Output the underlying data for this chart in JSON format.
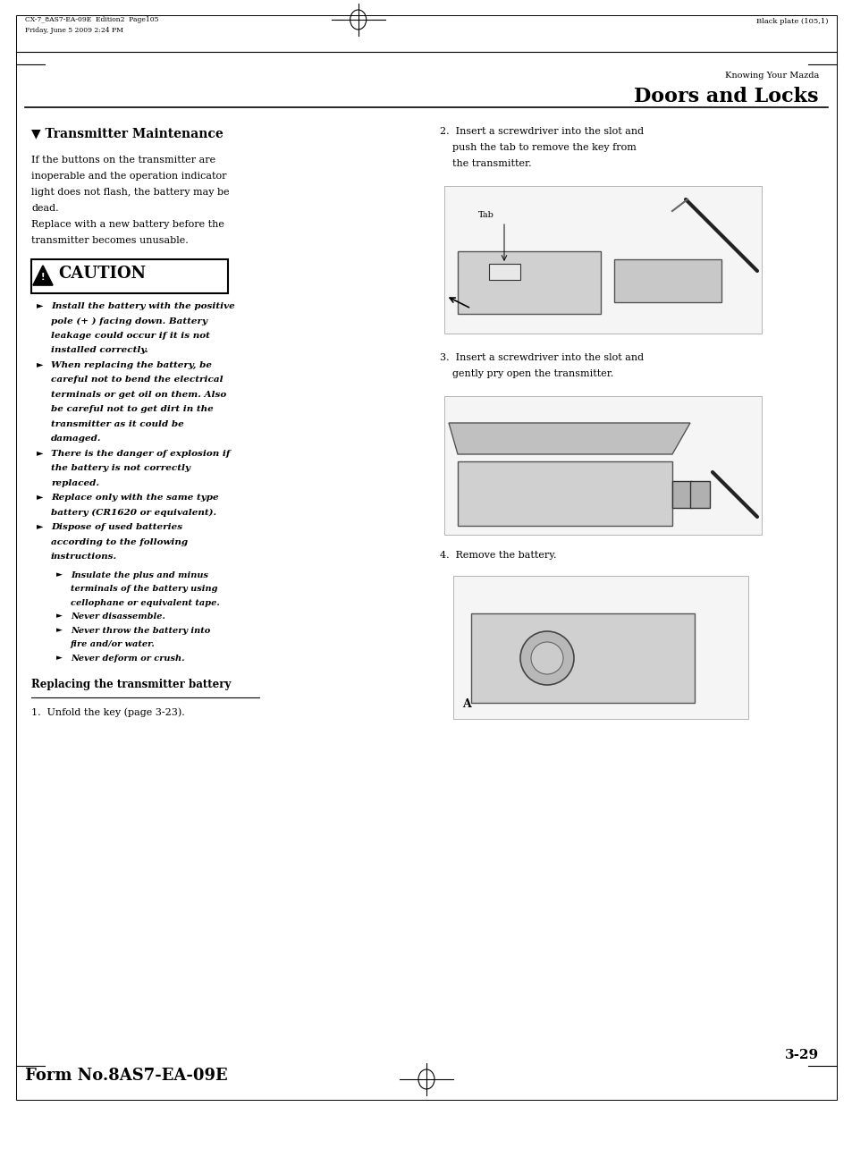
{
  "page_width": 9.54,
  "page_height": 12.85,
  "bg_color": "#ffffff",
  "top_left_line1": "CX-7_8AS7-EA-09E  Edition2  Page105",
  "top_left_line2": "Friday, June 5 2009 2:24 PM",
  "top_right_text": "Black plate (105,1)",
  "section_label": "Knowing Your Mazda",
  "section_title": "Doors and Locks",
  "heading": "▼ Transmitter Maintenance",
  "intro_text": "If the buttons on the transmitter are\ninoperable and the operation indicator\nlight does not flash, the battery may be\ndead.\nReplace with a new battery before the\ntransmitter becomes unusable.",
  "caution_title": "CAUTION",
  "caution_bullets": [
    "Install the battery with the positive\npole (+ ) facing down. Battery\nleakage could occur if it is not\ninstalled correctly.",
    "When replacing the battery, be\ncareful not to bend the electrical\nterminals or get oil on them. Also\nbe careful not to get dirt in the\ntransmitter as it could be\ndamaged.",
    "There is the danger of explosion if\nthe battery is not correctly\nreplaced.",
    "Replace only with the same type\nbattery (CR1620 or equivalent).",
    "Dispose of used batteries\naccording to the following\ninstructions."
  ],
  "sub_bullets": [
    "Insulate the plus and minus\nterminals of the battery using\ncellophane or equivalent tape.",
    "Never disassemble.",
    "Never throw the battery into\nfire and/or water.",
    "Never deform or crush."
  ],
  "replacing_heading": "Replacing the transmitter battery",
  "step1": "1.  Unfold the key (page 3-23).",
  "step2_lines": [
    "2.  Insert a screwdriver into the slot and",
    "    push the tab to remove the key from",
    "    the transmitter."
  ],
  "step3_lines": [
    "3.  Insert a screwdriver into the slot and",
    "    gently pry open the transmitter."
  ],
  "step4": "4.  Remove the battery.",
  "tab_label": "Tab",
  "a_label": "A",
  "page_number": "3-29",
  "form_number": "Form No.8AS7-EA-09E"
}
